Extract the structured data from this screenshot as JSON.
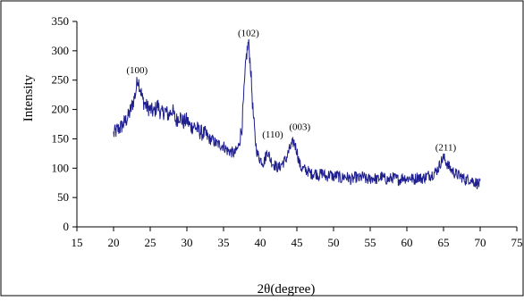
{
  "chart_data": {
    "type": "line",
    "title": "",
    "xlabel": "2θ(degree)",
    "ylabel": "Intensity",
    "xlim": [
      15,
      75
    ],
    "ylim": [
      0,
      350
    ],
    "xticks": [
      15,
      20,
      25,
      30,
      35,
      40,
      45,
      50,
      55,
      60,
      65,
      70,
      75
    ],
    "yticks": [
      0,
      50,
      100,
      150,
      200,
      250,
      300,
      350
    ],
    "grid": false,
    "legend": "none",
    "line_color": "#1f1f8f",
    "annotations": [
      {
        "text": "(100)",
        "x": 23.2,
        "y": 262
      },
      {
        "text": "(102)",
        "x": 38.4,
        "y": 325
      },
      {
        "text": "(110)",
        "x": 41.7,
        "y": 152
      },
      {
        "text": "(003)",
        "x": 45.4,
        "y": 165
      },
      {
        "text": "(211)",
        "x": 65.3,
        "y": 130
      }
    ],
    "series": [
      {
        "values": {
          "x": [
            20,
            20.5,
            21,
            21.5,
            22,
            22.5,
            23,
            23.3,
            23.6,
            24,
            24.5,
            25,
            25.5,
            26,
            26.5,
            27,
            27.5,
            28,
            28.5,
            29,
            29.5,
            30,
            30.5,
            31,
            31.5,
            32,
            32.5,
            33,
            33.5,
            34,
            34.5,
            35,
            35.5,
            36,
            36.5,
            37,
            37.5,
            37.8,
            38.1,
            38.4,
            38.7,
            39,
            39.3,
            39.6,
            40,
            40.5,
            41,
            41.3,
            41.6,
            42,
            42.5,
            43,
            43.5,
            44,
            44.3,
            44.6,
            45,
            45.3,
            45.6,
            46,
            46.5,
            47,
            47.5,
            48,
            48.5,
            49,
            49.5,
            50,
            50.5,
            51,
            51.5,
            52,
            52.5,
            53,
            53.5,
            54,
            54.5,
            55,
            55.5,
            56,
            56.5,
            57,
            57.5,
            58,
            58.5,
            59,
            59.5,
            60,
            60.5,
            61,
            61.5,
            62,
            62.5,
            63,
            63.5,
            64,
            64.3,
            64.6,
            65,
            65.3,
            65.6,
            66,
            66.5,
            67,
            67.5,
            68,
            68.5,
            69,
            69.5,
            70
          ],
          "y": [
            158,
            165,
            170,
            178,
            188,
            205,
            228,
            255,
            238,
            215,
            205,
            200,
            195,
            208,
            192,
            198,
            190,
            200,
            180,
            190,
            178,
            182,
            170,
            172,
            165,
            160,
            158,
            150,
            148,
            142,
            140,
            138,
            130,
            128,
            125,
            135,
            170,
            230,
            290,
            315,
            270,
            200,
            150,
            125,
            115,
            110,
            130,
            118,
            110,
            105,
            100,
            108,
            115,
            132,
            140,
            145,
            130,
            110,
            100,
            98,
            95,
            90,
            92,
            88,
            92,
            85,
            90,
            85,
            88,
            82,
            86,
            84,
            80,
            85,
            82,
            86,
            80,
            82,
            84,
            80,
            86,
            82,
            80,
            84,
            82,
            80,
            85,
            82,
            84,
            80,
            86,
            82,
            85,
            88,
            90,
            95,
            100,
            110,
            118,
            112,
            105,
            98,
            92,
            88,
            85,
            80,
            82,
            78,
            75,
            72
          ]
        }
      }
    ]
  }
}
